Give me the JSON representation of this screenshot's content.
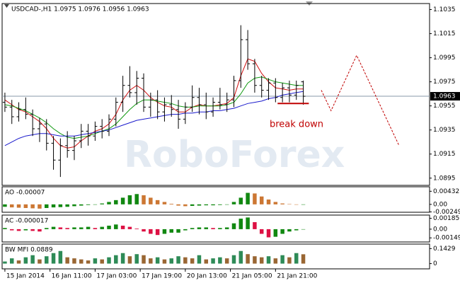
{
  "chart_data": [
    {
      "type": "ohlc",
      "title": "USDCAD-,H1 1.0975 1.0976 1.0956 1.0963",
      "watermark": "RoboForex",
      "annotation": "break down",
      "x": [
        0,
        1,
        2,
        3,
        4,
        5,
        6,
        7,
        8,
        9,
        10,
        11,
        12,
        13,
        14,
        15,
        16,
        17,
        18,
        19,
        20,
        21,
        22,
        23,
        24,
        25,
        26,
        27,
        28,
        29,
        30,
        31,
        32,
        33,
        34,
        35,
        36,
        37,
        38,
        39,
        40,
        41,
        42,
        43
      ],
      "open": [
        1.0958,
        1.0954,
        1.0946,
        1.0952,
        1.0948,
        1.0936,
        1.094,
        1.0924,
        1.091,
        1.0922,
        1.0918,
        1.0926,
        1.0934,
        1.093,
        1.0938,
        1.0934,
        1.0944,
        1.0958,
        1.0972,
        1.0966,
        1.0978,
        1.0954,
        1.096,
        1.095,
        1.0956,
        1.0952,
        1.0944,
        1.0954,
        1.0962,
        1.0956,
        1.095,
        1.0958,
        1.0956,
        1.096,
        1.0976,
        1.101,
        1.099,
        1.0972,
        1.0968,
        1.0974,
        1.0962,
        1.097,
        1.0964,
        1.0975
      ],
      "high": [
        1.0966,
        1.096,
        1.0958,
        1.0962,
        1.0952,
        1.0945,
        1.0944,
        1.093,
        1.0928,
        1.0934,
        1.093,
        1.094,
        1.094,
        1.0942,
        1.0944,
        1.0948,
        1.0962,
        1.098,
        1.0988,
        1.0984,
        1.0982,
        1.0966,
        1.0968,
        1.0962,
        1.0964,
        1.096,
        1.0958,
        1.0972,
        1.097,
        1.0966,
        1.0962,
        1.097,
        1.0966,
        1.098,
        1.1022,
        1.1018,
        1.0994,
        1.098,
        1.0978,
        1.0978,
        1.0974,
        1.0976,
        1.0976,
        1.0976
      ],
      "low": [
        1.095,
        1.094,
        1.0942,
        1.0944,
        1.093,
        1.0925,
        1.0918,
        1.0902,
        1.0896,
        1.0912,
        1.091,
        1.092,
        1.0922,
        1.0926,
        1.0928,
        1.093,
        1.0938,
        1.095,
        1.0962,
        1.0956,
        1.095,
        1.0946,
        1.0944,
        1.0942,
        1.0946,
        1.0936,
        1.094,
        1.095,
        1.0948,
        1.0944,
        1.0946,
        1.0952,
        1.095,
        1.0954,
        1.097,
        1.0985,
        1.0966,
        1.0962,
        1.096,
        1.0958,
        1.0958,
        1.0958,
        1.096,
        1.0956
      ],
      "close": [
        1.0954,
        1.0946,
        1.0952,
        1.0948,
        1.0936,
        1.094,
        1.0924,
        1.091,
        1.0922,
        1.0918,
        1.0926,
        1.0934,
        1.093,
        1.0938,
        1.0934,
        1.0944,
        1.0958,
        1.0972,
        1.0966,
        1.0978,
        1.0954,
        1.096,
        1.095,
        1.0956,
        1.0952,
        1.0944,
        1.0954,
        1.0962,
        1.0956,
        1.095,
        1.0958,
        1.0956,
        1.096,
        1.0976,
        1.101,
        1.099,
        1.0972,
        1.0968,
        1.0974,
        1.0962,
        1.097,
        1.0964,
        1.0972,
        1.0963
      ],
      "color": "#000000",
      "moving_averages": [
        {
          "color": "#d01010",
          "values": [
            1.096,
            1.0956,
            1.0952,
            1.095,
            1.0946,
            1.0942,
            1.0936,
            1.0928,
            1.0922,
            1.092,
            1.0921,
            1.0926,
            1.093,
            1.0934,
            1.0936,
            1.094,
            1.0948,
            1.096,
            1.0968,
            1.0972,
            1.0968,
            1.0962,
            1.0958,
            1.0955,
            1.0954,
            1.095,
            1.095,
            1.0954,
            1.0956,
            1.0955,
            1.0955,
            1.0956,
            1.0957,
            1.0962,
            1.098,
            1.0994,
            1.0992,
            1.0982,
            1.0975,
            1.097,
            1.0969,
            1.0968,
            1.0969,
            1.0969
          ]
        },
        {
          "color": "#119911",
          "values": [
            1.0956,
            1.0955,
            1.0953,
            1.0951,
            1.0948,
            1.0945,
            1.0941,
            1.0936,
            1.0932,
            1.0929,
            1.0928,
            1.0929,
            1.093,
            1.0932,
            1.0934,
            1.0936,
            1.094,
            1.0946,
            1.0952,
            1.0957,
            1.096,
            1.096,
            1.0959,
            1.0958,
            1.0957,
            1.0955,
            1.0954,
            1.0954,
            1.0955,
            1.0955,
            1.0955,
            1.0955,
            1.0956,
            1.0958,
            1.0965,
            1.0974,
            1.0978,
            1.0979,
            1.0977,
            1.0975,
            1.0974,
            1.0973,
            1.0972,
            1.0972
          ]
        },
        {
          "color": "#1a1acc",
          "values": [
            1.0922,
            1.0925,
            1.0928,
            1.093,
            1.0931,
            1.0932,
            1.0932,
            1.0931,
            1.093,
            1.093,
            1.093,
            1.0931,
            1.0932,
            1.0933,
            1.0934,
            1.0935,
            1.0937,
            1.0939,
            1.0941,
            1.0943,
            1.0944,
            1.0945,
            1.0946,
            1.0947,
            1.0948,
            1.0948,
            1.0949,
            1.0949,
            1.095,
            1.095,
            1.0951,
            1.0951,
            1.0952,
            1.0953,
            1.0955,
            1.0957,
            1.0958,
            1.0959,
            1.0961,
            1.0962,
            1.0964,
            1.0965,
            1.0966,
            1.0967
          ]
        }
      ],
      "forecast": {
        "color": "#c00000",
        "x": [
          45.6,
          47,
          50.7,
          56.8
        ],
        "values": [
          1.0968,
          1.0951,
          1.0997,
          1.0922
        ]
      },
      "level": {
        "color": "#c00000",
        "x": [
          39.3,
          43.8
        ],
        "value": 1.0957
      },
      "current_price": 1.0963,
      "xlim": [
        -0.4,
        61.2
      ],
      "ylim": [
        1.0889,
        1.104
      ],
      "yticks": [
        1.1035,
        1.1015,
        1.0995,
        1.0975,
        1.0955,
        1.0935,
        1.0915,
        1.0895
      ]
    },
    {
      "type": "bar",
      "title": "AO -0.00007",
      "up_color": "#118811",
      "down_color": "#cc7733",
      "values": [
        -0.0008,
        -0.001,
        -0.0011,
        -0.0012,
        -0.0013,
        -0.0014,
        -0.0012,
        -0.001,
        -0.0009,
        -0.0008,
        -0.0006,
        -0.0004,
        -0.0002,
        0.0,
        0.0003,
        0.0008,
        0.0014,
        0.0022,
        0.003,
        0.0034,
        0.003,
        0.0022,
        0.0014,
        0.0008,
        0.0002,
        -0.0004,
        -0.0006,
        -0.0005,
        -0.0004,
        -0.0003,
        -0.0003,
        -0.0002,
        -0.0001,
        0.0008,
        0.0022,
        0.0038,
        0.0036,
        0.0026,
        0.0016,
        0.0008,
        0.0003,
        0.0001,
        -0.0001,
        -7e-05
      ],
      "xlim": [
        -0.4,
        61.2
      ],
      "ylim": [
        -0.0026,
        0.0058
      ],
      "yticks": [
        0.00432,
        {
          "value": 0,
          "label": "0.00"
        },
        -0.00249
      ]
    },
    {
      "type": "bar",
      "title": "AC -0.000017",
      "up_color": "#118811",
      "down_color": "#dd1144",
      "values": [
        0.0002,
        -0.0002,
        -0.0003,
        -0.0002,
        -0.0003,
        -0.0004,
        0.0002,
        0.0004,
        0.0003,
        0.0002,
        0.0003,
        0.0003,
        0.0004,
        0.0002,
        0.0004,
        0.0006,
        0.0008,
        0.0006,
        0.0004,
        0.0001,
        -0.0004,
        -0.0008,
        -0.001,
        -0.0008,
        -0.0006,
        -0.0006,
        -0.0002,
        0.0002,
        0.0003,
        0.0003,
        0.0002,
        0.0002,
        0.0003,
        0.001,
        0.0018,
        0.002,
        0.0012,
        -0.0008,
        -0.0014,
        -0.0013,
        -0.0008,
        -0.0004,
        -0.0002,
        -1.7e-05
      ],
      "xlim": [
        -0.4,
        61.2
      ],
      "ylim": [
        -0.00219,
        0.00241
      ],
      "yticks": [
        0.001856,
        {
          "value": 0,
          "label": "0.00"
        },
        -0.00149
      ]
    },
    {
      "type": "bar",
      "title": "BW MFI 0.0889",
      "up_color": "#2e8b57",
      "down_color": "#996633",
      "values": [
        0.02,
        0.05,
        0.03,
        0.06,
        0.08,
        0.04,
        0.07,
        0.1,
        0.12,
        0.06,
        0.05,
        0.04,
        0.03,
        0.05,
        0.04,
        0.06,
        0.08,
        0.1,
        0.07,
        0.09,
        0.08,
        0.05,
        0.06,
        0.04,
        0.05,
        0.07,
        0.06,
        0.05,
        0.08,
        0.04,
        0.05,
        0.06,
        0.05,
        0.08,
        0.12,
        0.09,
        0.07,
        0.06,
        0.07,
        0.05,
        0.08,
        0.06,
        0.1,
        0.0889
      ],
      "xlim": [
        -0.4,
        61.2
      ],
      "ylim": [
        -0.05,
        0.1857
      ],
      "yticks": [
        0.1429,
        0
      ],
      "xticks": [
        {
          "value": 0,
          "label": "15 Jan 2014"
        },
        {
          "value": 6.5,
          "label": "16 Jan 11:00"
        },
        {
          "value": 13,
          "label": "17 Jan 03:00"
        },
        {
          "value": 19.5,
          "label": "17 Jan 19:00"
        },
        {
          "value": 26,
          "label": "20 Jan 13:00"
        },
        {
          "value": 32.5,
          "label": "21 Jan 05:00"
        },
        {
          "value": 39,
          "label": "21 Jan 21:00"
        }
      ]
    }
  ]
}
